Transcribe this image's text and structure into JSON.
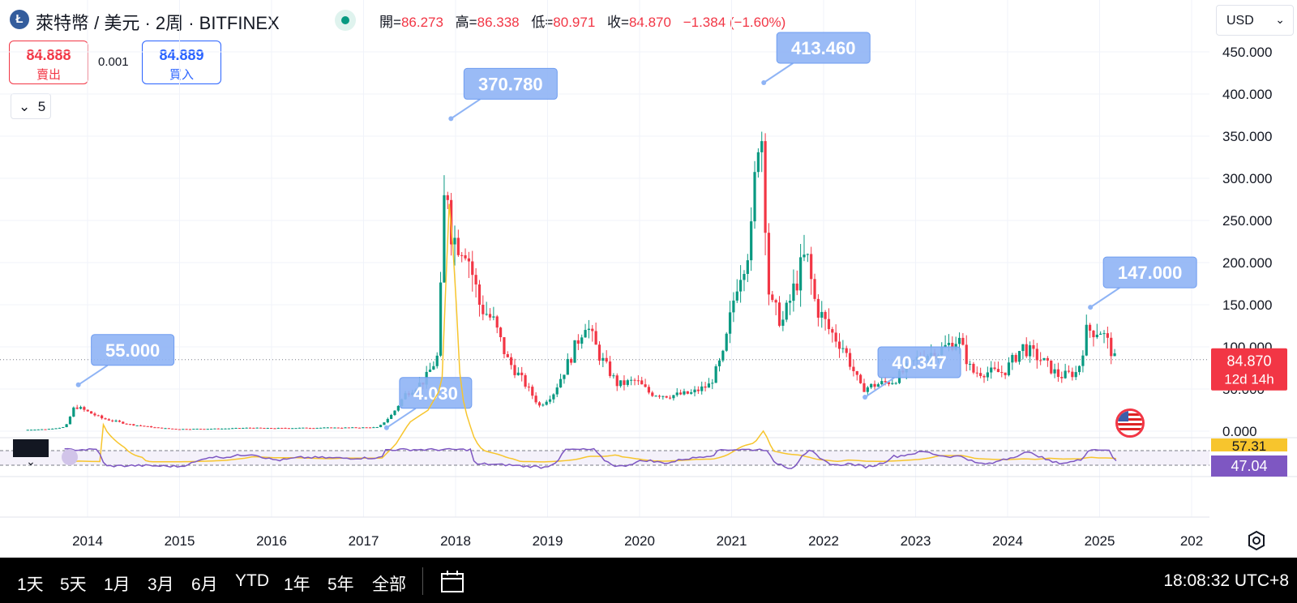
{
  "header": {
    "title": "萊特幣 / 美元 · 2周 · BITFINEX",
    "coin_icon": "litecoin-icon",
    "ohlc": {
      "open_label": "開=",
      "open": "86.273",
      "high_label": "高=",
      "high": "86.338",
      "low_label": "低=",
      "low": "80.971",
      "close_label": "收=",
      "close": "84.870",
      "change": "−1.384 (−1.60%)"
    },
    "currency": "USD"
  },
  "quote": {
    "sell_price": "84.888",
    "sell_label": "賣出",
    "spread": "0.001",
    "buy_price": "84.889",
    "buy_label": "買入"
  },
  "studies_count": "5",
  "price_badge": {
    "price": "84.870",
    "countdown": "12d 14h"
  },
  "rsi_badges": {
    "upper": "57.31",
    "lower": "47.04"
  },
  "colors": {
    "up": "#089981",
    "down": "#f23645",
    "callout": "#8fb4f5",
    "rsi": "#7e57c2",
    "rsi_ma": "#f7c52d"
  },
  "bottom_bar": {
    "ranges": [
      "1天",
      "5天",
      "1月",
      "3月",
      "6月",
      "YTD",
      "1年",
      "5年",
      "全部"
    ],
    "clock": "18:08:32 UTC+8"
  },
  "chart_data": {
    "type": "candlestick",
    "y_ticks": [
      "0.000",
      "50.000",
      "100.000",
      "150.000",
      "200.000",
      "250.000",
      "300.000",
      "350.000",
      "400.000",
      "450.000"
    ],
    "x_ticks": [
      "2014",
      "2015",
      "2016",
      "2017",
      "2018",
      "2019",
      "2020",
      "2021",
      "2022",
      "2023",
      "2024",
      "2025",
      "202"
    ],
    "ylim": [
      0,
      450
    ],
    "callouts": [
      {
        "label": "55.000",
        "year": 2013.9,
        "value": 55
      },
      {
        "label": "4.030",
        "year": 2017.25,
        "value": 4.03
      },
      {
        "label": "370.780",
        "year": 2017.95,
        "value": 370.78
      },
      {
        "label": "413.460",
        "year": 2021.35,
        "value": 413.46
      },
      {
        "label": "40.347",
        "year": 2022.45,
        "value": 40.347
      },
      {
        "label": "147.000",
        "year": 2024.9,
        "value": 147
      }
    ],
    "price_path": [
      [
        2013.35,
        1.5
      ],
      [
        2013.6,
        2.5
      ],
      [
        2013.8,
        5
      ],
      [
        2013.9,
        30
      ],
      [
        2014.0,
        25
      ],
      [
        2014.2,
        15
      ],
      [
        2014.5,
        8
      ],
      [
        2014.8,
        4
      ],
      [
        2015.0,
        2.5
      ],
      [
        2015.5,
        3
      ],
      [
        2015.8,
        4
      ],
      [
        2016.0,
        3.5
      ],
      [
        2016.5,
        4
      ],
      [
        2016.9,
        4.2
      ],
      [
        2017.2,
        4.5
      ],
      [
        2017.35,
        20
      ],
      [
        2017.5,
        45
      ],
      [
        2017.7,
        60
      ],
      [
        2017.85,
        90
      ],
      [
        2017.93,
        315
      ],
      [
        2018.0,
        230
      ],
      [
        2018.15,
        220
      ],
      [
        2018.3,
        150
      ],
      [
        2018.45,
        130
      ],
      [
        2018.6,
        85
      ],
      [
        2018.8,
        55
      ],
      [
        2018.95,
        30
      ],
      [
        2019.1,
        45
      ],
      [
        2019.3,
        90
      ],
      [
        2019.45,
        130
      ],
      [
        2019.6,
        90
      ],
      [
        2019.8,
        55
      ],
      [
        2020.0,
        60
      ],
      [
        2020.15,
        45
      ],
      [
        2020.35,
        42
      ],
      [
        2020.6,
        45
      ],
      [
        2020.8,
        55
      ],
      [
        2020.95,
        90
      ],
      [
        2021.1,
        180
      ],
      [
        2021.25,
        230
      ],
      [
        2021.35,
        390
      ],
      [
        2021.45,
        150
      ],
      [
        2021.6,
        130
      ],
      [
        2021.75,
        180
      ],
      [
        2021.85,
        210
      ],
      [
        2021.95,
        150
      ],
      [
        2022.1,
        120
      ],
      [
        2022.25,
        100
      ],
      [
        2022.45,
        50
      ],
      [
        2022.6,
        55
      ],
      [
        2022.8,
        60
      ],
      [
        2022.95,
        75
      ],
      [
        2023.1,
        90
      ],
      [
        2023.3,
        95
      ],
      [
        2023.5,
        110
      ],
      [
        2023.65,
        70
      ],
      [
        2023.85,
        70
      ],
      [
        2024.0,
        70
      ],
      [
        2024.2,
        100
      ],
      [
        2024.4,
        85
      ],
      [
        2024.6,
        65
      ],
      [
        2024.8,
        70
      ],
      [
        2024.9,
        120
      ],
      [
        2025.05,
        120
      ],
      [
        2025.15,
        100
      ],
      [
        2025.2,
        85
      ]
    ]
  }
}
